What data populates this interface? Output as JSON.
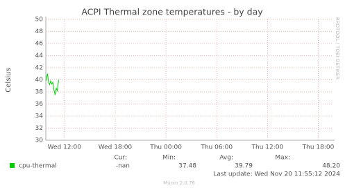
{
  "chart_data": {
    "type": "line",
    "title": "ACPI Thermal zone temperatures - by day",
    "y_label": "Celsius",
    "side_text": "RRDTOOL / TOBI OETIKER",
    "x": [
      9.8,
      9.92,
      10.0,
      10.13,
      10.25,
      10.37,
      10.5,
      10.62,
      10.78,
      10.9,
      11.03,
      11.15,
      11.32
    ],
    "series": [
      {
        "name": "cpu-thermal",
        "color": "#00cc00",
        "values": [
          39.8,
          40.6,
          41.0,
          39.6,
          39.2,
          39.8,
          39.3,
          39.6,
          38.2,
          37.5,
          38.6,
          38.2,
          40.0
        ]
      }
    ],
    "xlim": [
      9.8,
      43.6
    ],
    "xticks": [
      {
        "value": 12,
        "label": "Wed 12:00"
      },
      {
        "value": 18,
        "label": "Wed 18:00"
      },
      {
        "value": 24,
        "label": "Thu 00:00"
      },
      {
        "value": 30,
        "label": "Thu 06:00"
      },
      {
        "value": 36,
        "label": "Thu 12:00"
      },
      {
        "value": 42,
        "label": "Thu 18:00"
      }
    ],
    "ylim": [
      30,
      50
    ],
    "yticks": [
      30,
      32,
      34,
      36,
      38,
      40,
      42,
      44,
      46,
      48,
      50
    ],
    "grid": true,
    "legend": {
      "headers": [
        "Cur:",
        "Min:",
        "Avg:",
        "Max:"
      ],
      "rows": [
        [
          "-nan",
          "37.48",
          "39.79",
          "48.20"
        ]
      ]
    },
    "last_update": "Last update: Wed Nov 20 11:55:12 2024",
    "footer": "Munin 2.0.76"
  }
}
